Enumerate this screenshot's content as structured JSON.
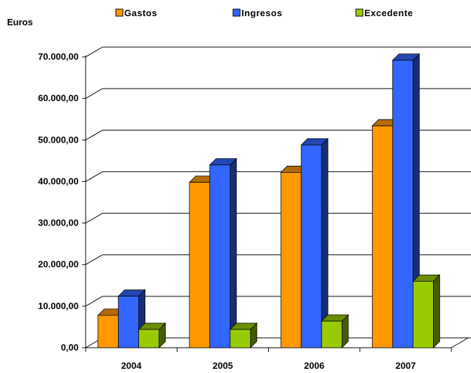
{
  "chart_data": {
    "type": "bar",
    "ylabel": "Euros",
    "categories": [
      "2004",
      "2005",
      "2006",
      "2007"
    ],
    "series": [
      {
        "name": "Gastos",
        "values": [
          7800,
          39800,
          42200,
          53400
        ],
        "color": "#FF9900"
      },
      {
        "name": "Ingresos",
        "values": [
          12400,
          44000,
          48800,
          69200
        ],
        "color": "#3366FF"
      },
      {
        "name": "Excedente",
        "values": [
          4400,
          4400,
          6400,
          16000
        ],
        "color": "#99CC00"
      }
    ],
    "ylim": [
      0,
      70000
    ],
    "yticks": [
      0,
      10000,
      20000,
      30000,
      40000,
      50000,
      60000,
      70000
    ],
    "ytick_labels": [
      "0,00",
      "10.000,00",
      "20.000,00",
      "30.000,00",
      "40.000,00",
      "50.000,00",
      "60.000,00",
      "70.000,00"
    ],
    "grid": true,
    "legend_position": "top",
    "style": "3d-clustered"
  }
}
